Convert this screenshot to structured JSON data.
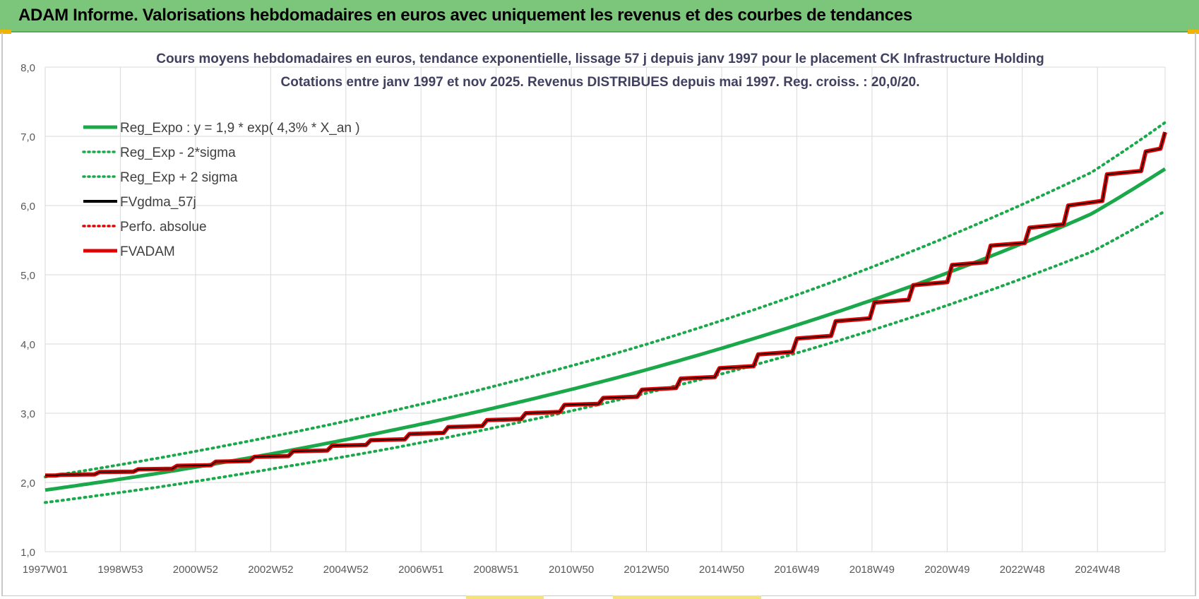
{
  "banner": {
    "title": "ADAM Informe. Valorisations hebdomadaires en euros avec uniquement les revenus et des courbes de tendances",
    "color": "#7bc67b"
  },
  "chart_data": {
    "type": "line",
    "title_line1": "Cours moyens hebdomadaires en euros, tendance exponentielle, lissage 57 j depuis janv 1997  pour le placement CK Infrastructure Holding",
    "title_line2": "Cotations entre janv 1997 et nov 2025. Revenus DISTRIBUES depuis mai 1997.  Reg. croiss. : 20,0/20.",
    "xlabel": "",
    "ylabel": "",
    "ylim": [
      1.0,
      8.0
    ],
    "xlim_years": [
      1997.0,
      2025.9
    ],
    "y_ticks": [
      "1,0",
      "2,0",
      "3,0",
      "4,0",
      "5,0",
      "6,0",
      "7,0",
      "8,0"
    ],
    "x_ticks": [
      "1997W01",
      "1998W53",
      "2000W52",
      "2002W52",
      "2004W52",
      "2006W51",
      "2008W51",
      "2010W50",
      "2012W50",
      "2014W50",
      "2016W49",
      "2018W49",
      "2020W49",
      "2022W48",
      "2024W48"
    ],
    "grid": true,
    "legend_position": "top-left",
    "legend": [
      {
        "label": "Reg_Expo : y = 1,9 * exp( 4,3% *  X_an )",
        "color": "#1aa84a",
        "style": "solid-thick"
      },
      {
        "label": "Reg_Exp - 2*sigma",
        "color": "#1aa84a",
        "style": "dotted"
      },
      {
        "label": "Reg_Exp + 2 sigma",
        "color": "#1aa84a",
        "style": "dotted"
      },
      {
        "label": "FVgdma_57j",
        "color": "#000000",
        "style": "solid"
      },
      {
        "label": "Perfo. absolue",
        "color": "#e00000",
        "style": "dotted"
      },
      {
        "label": "FVADAM",
        "color": "#e00000",
        "style": "solid-thick"
      }
    ],
    "series": [
      {
        "name": "Reg_Expo : y = 1,9 * exp( 4,3% *  X_an )",
        "x": [
          1997,
          2000,
          2003,
          2006,
          2009,
          2012,
          2015,
          2018,
          2021,
          2024,
          2025.9
        ],
        "values": [
          1.89,
          2.14,
          2.43,
          2.76,
          3.13,
          3.55,
          4.03,
          4.57,
          5.18,
          5.88,
          6.53
        ]
      },
      {
        "name": "Reg_Exp - 2*sigma",
        "x": [
          1997,
          2000,
          2003,
          2006,
          2009,
          2012,
          2015,
          2018,
          2021,
          2024,
          2025.9
        ],
        "values": [
          1.71,
          1.94,
          2.21,
          2.5,
          2.84,
          3.22,
          3.65,
          4.14,
          4.7,
          5.33,
          5.92
        ]
      },
      {
        "name": "Reg_Exp + 2 sigma",
        "x": [
          1997,
          2000,
          2003,
          2006,
          2009,
          2012,
          2015,
          2018,
          2021,
          2024,
          2025.9
        ],
        "values": [
          2.08,
          2.36,
          2.68,
          3.04,
          3.45,
          3.91,
          4.44,
          5.04,
          5.72,
          6.48,
          7.2
        ]
      },
      {
        "name": "FVgdma_57j",
        "x": [
          1997.0,
          1997.4,
          1998.4,
          1999.4,
          2000.4,
          2001.4,
          2002.4,
          2003.4,
          2004.4,
          2005.4,
          2006.4,
          2007.4,
          2008.4,
          2009.4,
          2010.4,
          2011.4,
          2012.4,
          2013.4,
          2014.4,
          2015.4,
          2016.4,
          2017.4,
          2018.4,
          2019.4,
          2020.4,
          2021.4,
          2022.4,
          2023.4,
          2024.4,
          2025.4,
          2025.9
        ],
        "values": [
          2.1,
          2.11,
          2.15,
          2.19,
          2.24,
          2.3,
          2.37,
          2.45,
          2.53,
          2.61,
          2.7,
          2.8,
          2.9,
          3.0,
          3.12,
          3.22,
          3.34,
          3.5,
          3.65,
          3.85,
          4.08,
          4.33,
          4.6,
          4.85,
          5.14,
          5.42,
          5.68,
          6.0,
          6.45,
          6.78,
          7.06
        ]
      },
      {
        "name": "FVADAM",
        "x": [
          1997.0,
          1997.4,
          1998.4,
          1999.4,
          2000.4,
          2001.4,
          2002.4,
          2003.4,
          2004.4,
          2005.4,
          2006.4,
          2007.4,
          2008.4,
          2009.4,
          2010.4,
          2011.4,
          2012.4,
          2013.4,
          2014.4,
          2015.4,
          2016.4,
          2017.4,
          2018.4,
          2019.4,
          2020.4,
          2021.4,
          2022.4,
          2023.4,
          2024.4,
          2025.4,
          2025.9
        ],
        "values": [
          2.1,
          2.11,
          2.15,
          2.19,
          2.24,
          2.3,
          2.37,
          2.45,
          2.53,
          2.61,
          2.7,
          2.8,
          2.9,
          3.0,
          3.12,
          3.22,
          3.34,
          3.5,
          3.65,
          3.85,
          4.08,
          4.33,
          4.6,
          4.85,
          5.14,
          5.42,
          5.68,
          6.0,
          6.45,
          6.78,
          7.06
        ]
      }
    ]
  }
}
